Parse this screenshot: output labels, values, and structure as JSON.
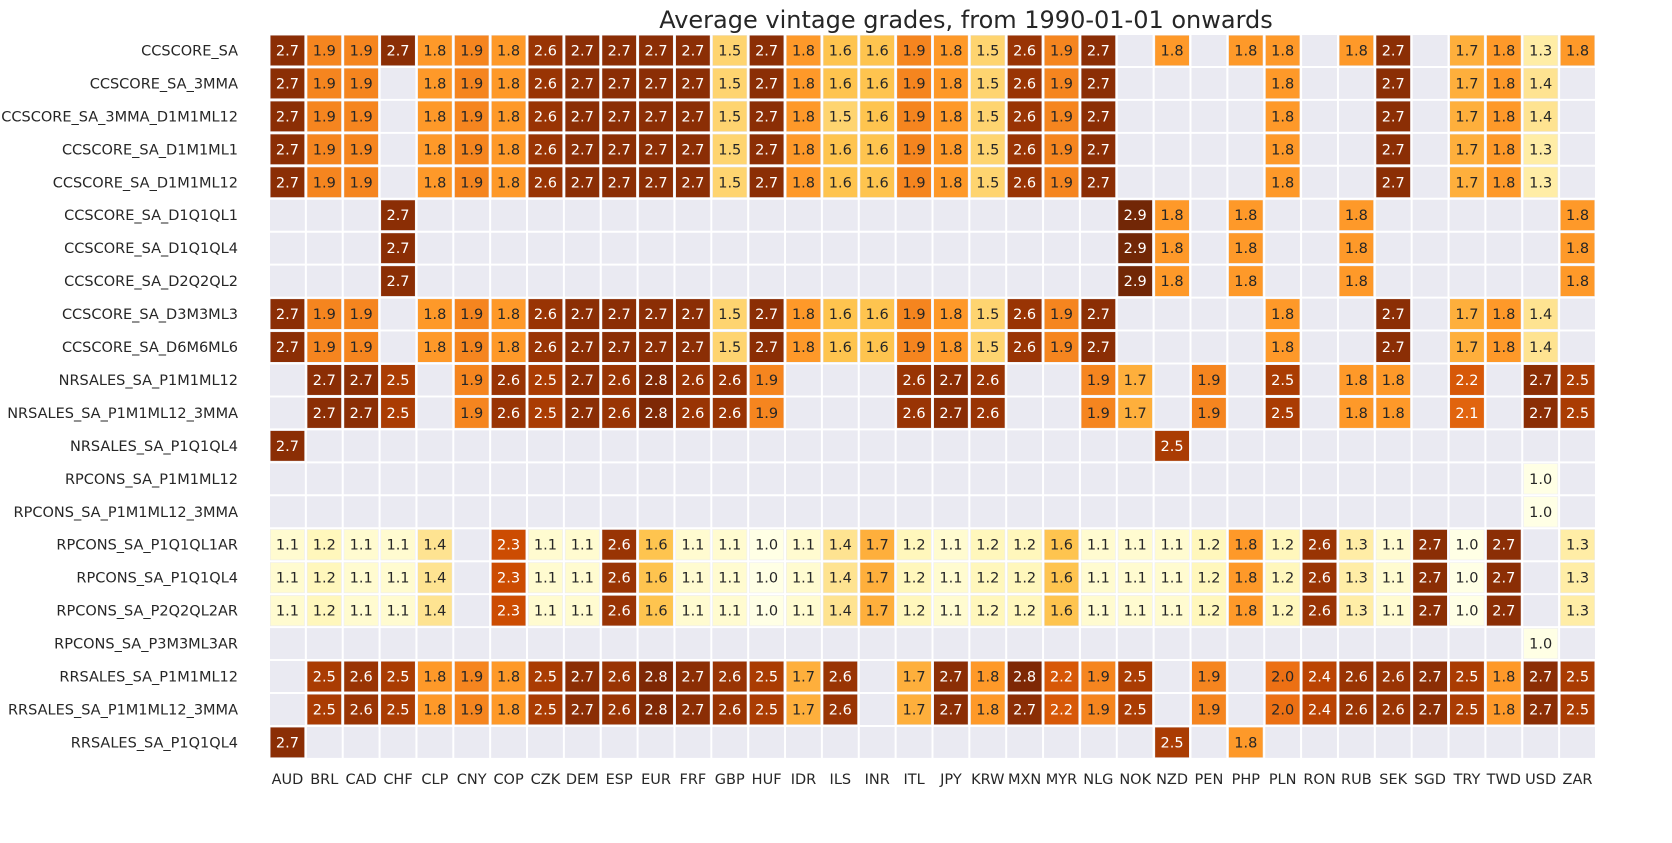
{
  "chart_data": {
    "type": "heatmap",
    "title": "Average vintage grades, from 1990-01-01 onwards",
    "columns": [
      "AUD",
      "BRL",
      "CAD",
      "CHF",
      "CLP",
      "CNY",
      "COP",
      "CZK",
      "DEM",
      "ESP",
      "EUR",
      "FRF",
      "GBP",
      "HUF",
      "IDR",
      "ILS",
      "INR",
      "ITL",
      "JPY",
      "KRW",
      "MXN",
      "MYR",
      "NLG",
      "NOK",
      "NZD",
      "PEN",
      "PHP",
      "PLN",
      "RON",
      "RUB",
      "SEK",
      "SGD",
      "TRY",
      "TWD",
      "USD",
      "ZAR"
    ],
    "rows": [
      "CCSCORE_SA",
      "CCSCORE_SA_3MMA",
      "CCSCORE_SA_3MMA_D1M1ML12",
      "CCSCORE_SA_D1M1ML1",
      "CCSCORE_SA_D1M1ML12",
      "CCSCORE_SA_D1Q1QL1",
      "CCSCORE_SA_D1Q1QL4",
      "CCSCORE_SA_D2Q2QL2",
      "CCSCORE_SA_D3M3ML3",
      "CCSCORE_SA_D6M6ML6",
      "NRSALES_SA_P1M1ML12",
      "NRSALES_SA_P1M1ML12_3MMA",
      "NRSALES_SA_P1Q1QL4",
      "RPCONS_SA_P1M1ML12",
      "RPCONS_SA_P1M1ML12_3MMA",
      "RPCONS_SA_P1Q1QL1AR",
      "RPCONS_SA_P1Q1QL4",
      "RPCONS_SA_P2Q2QL2AR",
      "RPCONS_SA_P3M3ML3AR",
      "RRSALES_SA_P1M1ML12",
      "RRSALES_SA_P1M1ML12_3MMA",
      "RRSALES_SA_P1Q1QL4"
    ],
    "values": [
      [
        2.7,
        1.9,
        1.9,
        2.7,
        1.8,
        1.9,
        1.8,
        2.6,
        2.7,
        2.7,
        2.7,
        2.7,
        1.5,
        2.7,
        1.8,
        1.6,
        1.6,
        1.9,
        1.8,
        1.5,
        2.6,
        1.9,
        2.7,
        null,
        1.8,
        null,
        1.8,
        1.8,
        null,
        1.8,
        2.7,
        null,
        1.7,
        1.8,
        1.3,
        1.8
      ],
      [
        2.7,
        1.9,
        1.9,
        null,
        1.8,
        1.9,
        1.8,
        2.6,
        2.7,
        2.7,
        2.7,
        2.7,
        1.5,
        2.7,
        1.8,
        1.6,
        1.6,
        1.9,
        1.8,
        1.5,
        2.6,
        1.9,
        2.7,
        null,
        null,
        null,
        null,
        1.8,
        null,
        null,
        2.7,
        null,
        1.7,
        1.8,
        1.4,
        null
      ],
      [
        2.7,
        1.9,
        1.9,
        null,
        1.8,
        1.9,
        1.8,
        2.6,
        2.7,
        2.7,
        2.7,
        2.7,
        1.5,
        2.7,
        1.8,
        1.5,
        1.6,
        1.9,
        1.8,
        1.5,
        2.6,
        1.9,
        2.7,
        null,
        null,
        null,
        null,
        1.8,
        null,
        null,
        2.7,
        null,
        1.7,
        1.8,
        1.4,
        null
      ],
      [
        2.7,
        1.9,
        1.9,
        null,
        1.8,
        1.9,
        1.8,
        2.6,
        2.7,
        2.7,
        2.7,
        2.7,
        1.5,
        2.7,
        1.8,
        1.6,
        1.6,
        1.9,
        1.8,
        1.5,
        2.6,
        1.9,
        2.7,
        null,
        null,
        null,
        null,
        1.8,
        null,
        null,
        2.7,
        null,
        1.7,
        1.8,
        1.3,
        null
      ],
      [
        2.7,
        1.9,
        1.9,
        null,
        1.8,
        1.9,
        1.8,
        2.6,
        2.7,
        2.7,
        2.7,
        2.7,
        1.5,
        2.7,
        1.8,
        1.6,
        1.6,
        1.9,
        1.8,
        1.5,
        2.6,
        1.9,
        2.7,
        null,
        null,
        null,
        null,
        1.8,
        null,
        null,
        2.7,
        null,
        1.7,
        1.8,
        1.3,
        null
      ],
      [
        null,
        null,
        null,
        2.7,
        null,
        null,
        null,
        null,
        null,
        null,
        null,
        null,
        null,
        null,
        null,
        null,
        null,
        null,
        null,
        null,
        null,
        null,
        null,
        2.9,
        1.8,
        null,
        1.8,
        null,
        null,
        1.8,
        null,
        null,
        null,
        null,
        null,
        1.8
      ],
      [
        null,
        null,
        null,
        2.7,
        null,
        null,
        null,
        null,
        null,
        null,
        null,
        null,
        null,
        null,
        null,
        null,
        null,
        null,
        null,
        null,
        null,
        null,
        null,
        2.9,
        1.8,
        null,
        1.8,
        null,
        null,
        1.8,
        null,
        null,
        null,
        null,
        null,
        1.8
      ],
      [
        null,
        null,
        null,
        2.7,
        null,
        null,
        null,
        null,
        null,
        null,
        null,
        null,
        null,
        null,
        null,
        null,
        null,
        null,
        null,
        null,
        null,
        null,
        null,
        2.9,
        1.8,
        null,
        1.8,
        null,
        null,
        1.8,
        null,
        null,
        null,
        null,
        null,
        1.8
      ],
      [
        2.7,
        1.9,
        1.9,
        null,
        1.8,
        1.9,
        1.8,
        2.6,
        2.7,
        2.7,
        2.7,
        2.7,
        1.5,
        2.7,
        1.8,
        1.6,
        1.6,
        1.9,
        1.8,
        1.5,
        2.6,
        1.9,
        2.7,
        null,
        null,
        null,
        null,
        1.8,
        null,
        null,
        2.7,
        null,
        1.7,
        1.8,
        1.4,
        null
      ],
      [
        2.7,
        1.9,
        1.9,
        null,
        1.8,
        1.9,
        1.8,
        2.6,
        2.7,
        2.7,
        2.7,
        2.7,
        1.5,
        2.7,
        1.8,
        1.6,
        1.6,
        1.9,
        1.8,
        1.5,
        2.6,
        1.9,
        2.7,
        null,
        null,
        null,
        null,
        1.8,
        null,
        null,
        2.7,
        null,
        1.7,
        1.8,
        1.4,
        null
      ],
      [
        null,
        2.7,
        2.7,
        2.5,
        null,
        1.9,
        2.6,
        2.5,
        2.7,
        2.6,
        2.8,
        2.6,
        2.6,
        1.9,
        null,
        null,
        null,
        2.6,
        2.7,
        2.6,
        null,
        null,
        1.9,
        1.7,
        null,
        1.9,
        null,
        2.5,
        null,
        1.8,
        1.8,
        null,
        2.2,
        null,
        2.7,
        2.5
      ],
      [
        null,
        2.7,
        2.7,
        2.5,
        null,
        1.9,
        2.6,
        2.5,
        2.7,
        2.6,
        2.8,
        2.6,
        2.6,
        1.9,
        null,
        null,
        null,
        2.6,
        2.7,
        2.6,
        null,
        null,
        1.9,
        1.7,
        null,
        1.9,
        null,
        2.5,
        null,
        1.8,
        1.8,
        null,
        2.1,
        null,
        2.7,
        2.5
      ],
      [
        2.7,
        null,
        null,
        null,
        null,
        null,
        null,
        null,
        null,
        null,
        null,
        null,
        null,
        null,
        null,
        null,
        null,
        null,
        null,
        null,
        null,
        null,
        null,
        null,
        2.5,
        null,
        null,
        null,
        null,
        null,
        null,
        null,
        null,
        null,
        null,
        null
      ],
      [
        null,
        null,
        null,
        null,
        null,
        null,
        null,
        null,
        null,
        null,
        null,
        null,
        null,
        null,
        null,
        null,
        null,
        null,
        null,
        null,
        null,
        null,
        null,
        null,
        null,
        null,
        null,
        null,
        null,
        null,
        null,
        null,
        null,
        null,
        1.0,
        null
      ],
      [
        null,
        null,
        null,
        null,
        null,
        null,
        null,
        null,
        null,
        null,
        null,
        null,
        null,
        null,
        null,
        null,
        null,
        null,
        null,
        null,
        null,
        null,
        null,
        null,
        null,
        null,
        null,
        null,
        null,
        null,
        null,
        null,
        null,
        null,
        1.0,
        null
      ],
      [
        1.1,
        1.2,
        1.1,
        1.1,
        1.4,
        null,
        2.3,
        1.1,
        1.1,
        2.6,
        1.6,
        1.1,
        1.1,
        1.0,
        1.1,
        1.4,
        1.7,
        1.2,
        1.1,
        1.2,
        1.2,
        1.6,
        1.1,
        1.1,
        1.1,
        1.2,
        1.8,
        1.2,
        2.6,
        1.3,
        1.1,
        2.7,
        1.0,
        2.7,
        null,
        1.3
      ],
      [
        1.1,
        1.2,
        1.1,
        1.1,
        1.4,
        null,
        2.3,
        1.1,
        1.1,
        2.6,
        1.6,
        1.1,
        1.1,
        1.0,
        1.1,
        1.4,
        1.7,
        1.2,
        1.1,
        1.2,
        1.2,
        1.6,
        1.1,
        1.1,
        1.1,
        1.2,
        1.8,
        1.2,
        2.6,
        1.3,
        1.1,
        2.7,
        1.0,
        2.7,
        null,
        1.3
      ],
      [
        1.1,
        1.2,
        1.1,
        1.1,
        1.4,
        null,
        2.3,
        1.1,
        1.1,
        2.6,
        1.6,
        1.1,
        1.1,
        1.0,
        1.1,
        1.4,
        1.7,
        1.2,
        1.1,
        1.2,
        1.2,
        1.6,
        1.1,
        1.1,
        1.1,
        1.2,
        1.8,
        1.2,
        2.6,
        1.3,
        1.1,
        2.7,
        1.0,
        2.7,
        null,
        1.3
      ],
      [
        null,
        null,
        null,
        null,
        null,
        null,
        null,
        null,
        null,
        null,
        null,
        null,
        null,
        null,
        null,
        null,
        null,
        null,
        null,
        null,
        null,
        null,
        null,
        null,
        null,
        null,
        null,
        null,
        null,
        null,
        null,
        null,
        null,
        null,
        1.0,
        null
      ],
      [
        null,
        2.5,
        2.6,
        2.5,
        1.8,
        1.9,
        1.8,
        2.5,
        2.7,
        2.6,
        2.8,
        2.7,
        2.6,
        2.5,
        1.7,
        2.6,
        null,
        1.7,
        2.7,
        1.8,
        2.8,
        2.2,
        1.9,
        2.5,
        null,
        1.9,
        null,
        2.0,
        2.4,
        2.6,
        2.6,
        2.7,
        2.5,
        1.8,
        2.7,
        2.5
      ],
      [
        null,
        2.5,
        2.6,
        2.5,
        1.8,
        1.9,
        1.8,
        2.5,
        2.7,
        2.6,
        2.8,
        2.7,
        2.6,
        2.5,
        1.7,
        2.6,
        null,
        1.7,
        2.7,
        1.8,
        2.7,
        2.2,
        1.9,
        2.5,
        null,
        1.9,
        null,
        2.0,
        2.4,
        2.6,
        2.6,
        2.7,
        2.5,
        1.8,
        2.7,
        2.5
      ],
      [
        2.7,
        null,
        null,
        null,
        null,
        null,
        null,
        null,
        null,
        null,
        null,
        null,
        null,
        null,
        null,
        null,
        null,
        null,
        null,
        null,
        null,
        null,
        null,
        null,
        2.5,
        null,
        1.8,
        null,
        null,
        null,
        null,
        null,
        null,
        null,
        null,
        null
      ]
    ],
    "colormap": "YlOrBr",
    "vmin": 1.0,
    "vmax": 3.0,
    "background": "#eaeaf2"
  }
}
